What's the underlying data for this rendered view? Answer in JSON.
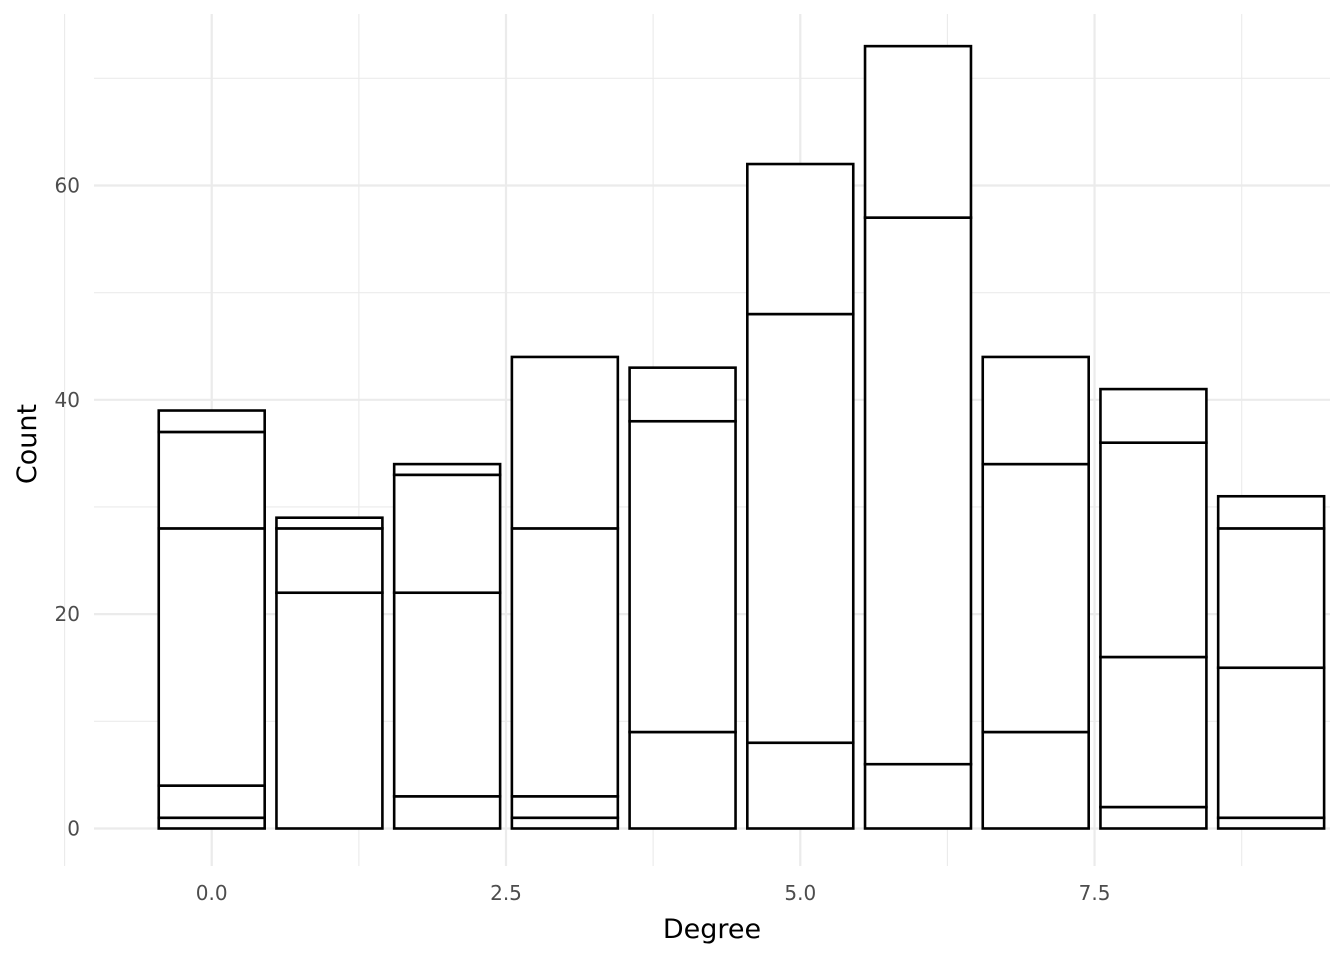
{
  "chart_data": {
    "type": "bar",
    "stacked": true,
    "title": "",
    "xlabel": "Degree",
    "ylabel": "Count",
    "xlim": [
      -1.0,
      9.5
    ],
    "ylim": [
      -3.5,
      76
    ],
    "x_ticks": [
      0.0,
      2.5,
      5.0,
      7.5
    ],
    "x_tick_labels": [
      "0.0",
      "2.5",
      "5.0",
      "7.5"
    ],
    "y_ticks": [
      0,
      20,
      40,
      60
    ],
    "y_tick_labels": [
      "0",
      "20",
      "40",
      "60"
    ],
    "grid": true,
    "legend": "none",
    "bar_width": 0.9,
    "categories": [
      0,
      1,
      2,
      3,
      4,
      5,
      6,
      7,
      8,
      9
    ],
    "stack_boundaries": [
      [
        1,
        4,
        28,
        37,
        39
      ],
      [
        22,
        28,
        29
      ],
      [
        3,
        22,
        33,
        34
      ],
      [
        1,
        3,
        28,
        44
      ],
      [
        9,
        38,
        43
      ],
      [
        8,
        48,
        62
      ],
      [
        6,
        57,
        73
      ],
      [
        9,
        34,
        44
      ],
      [
        2,
        16,
        36,
        41
      ],
      [
        1,
        15,
        28,
        31
      ]
    ],
    "totals": [
      39,
      29,
      34,
      44,
      43,
      62,
      73,
      44,
      41,
      31
    ]
  }
}
